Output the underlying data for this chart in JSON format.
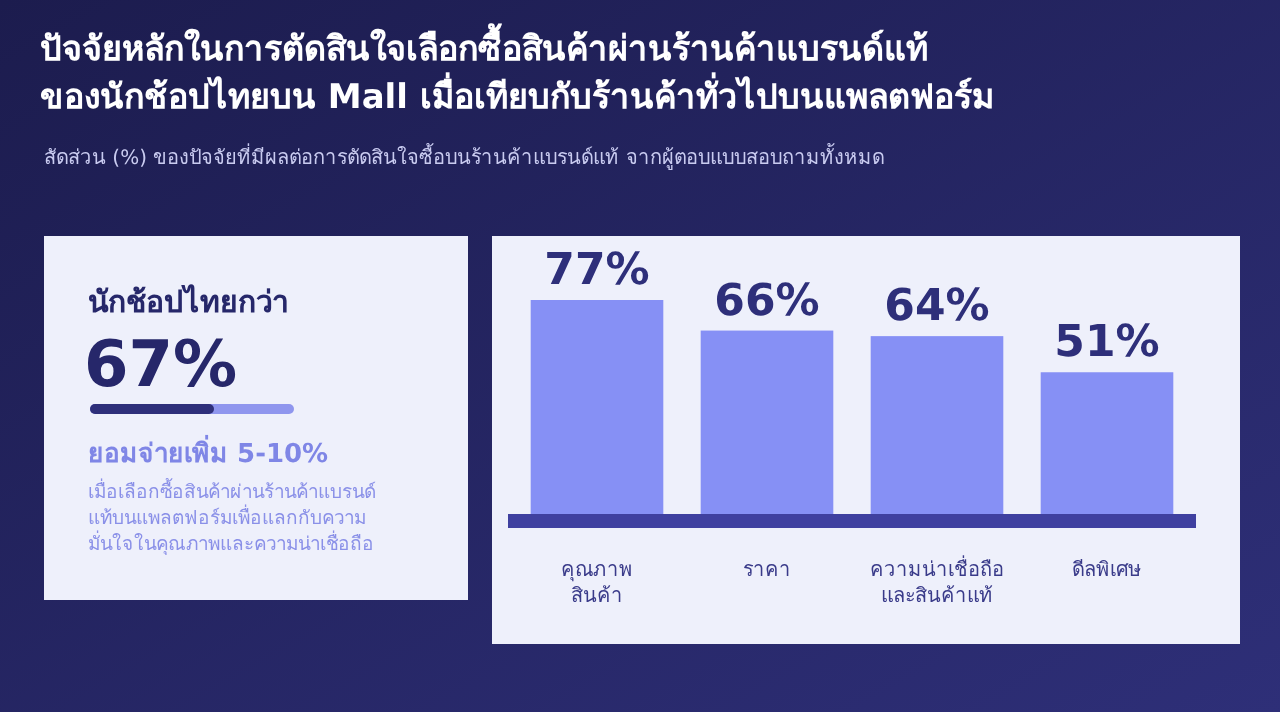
{
  "chart_data": [
    {
      "type": "other",
      "annotations": [
        "นักช้อปไทยกว่า",
        "67%",
        "ยอมจ่ายเพิ่ม 5-10%",
        "เมื่อเลือกซื้อสินค้าผ่านร้านค้าแบรนด์\nแท้บนแพลตฟอร์มเพื่อแลกกับความ\nมั่นใจในคุณภาพและความน่าเชื่อถือ"
      ]
    },
    {
      "type": "bar",
      "title": "ปัจจัยหลักในการตัดสินใจเลือกซื้อสินค้าผ่านร้านค้าแบรนด์แท้\nของนักช้อปไทยบน Mall เมื่อเทียบกับร้านค้าทั่วไปบนแพลตฟอร์ม",
      "subtitle": "สัดส่วน (%) ของปัจจัยที่มีผลต่อการตัดสินใจซื้อบนร้านค้าแบรนด์แท้ จากผู้ตอบแบบสอบถามทั้งหมด",
      "categories": [
        "คุณภาพ\nสินค้า",
        "ราคา",
        "ความน่าเชื่อถือ\nและสินค้าแท้",
        "ดีลพิเศษ"
      ],
      "values": [
        77,
        66,
        64,
        51
      ],
      "value_labels": [
        "77%",
        "66%",
        "64%",
        "51%"
      ],
      "color": "#8690f5"
    }
  ]
}
